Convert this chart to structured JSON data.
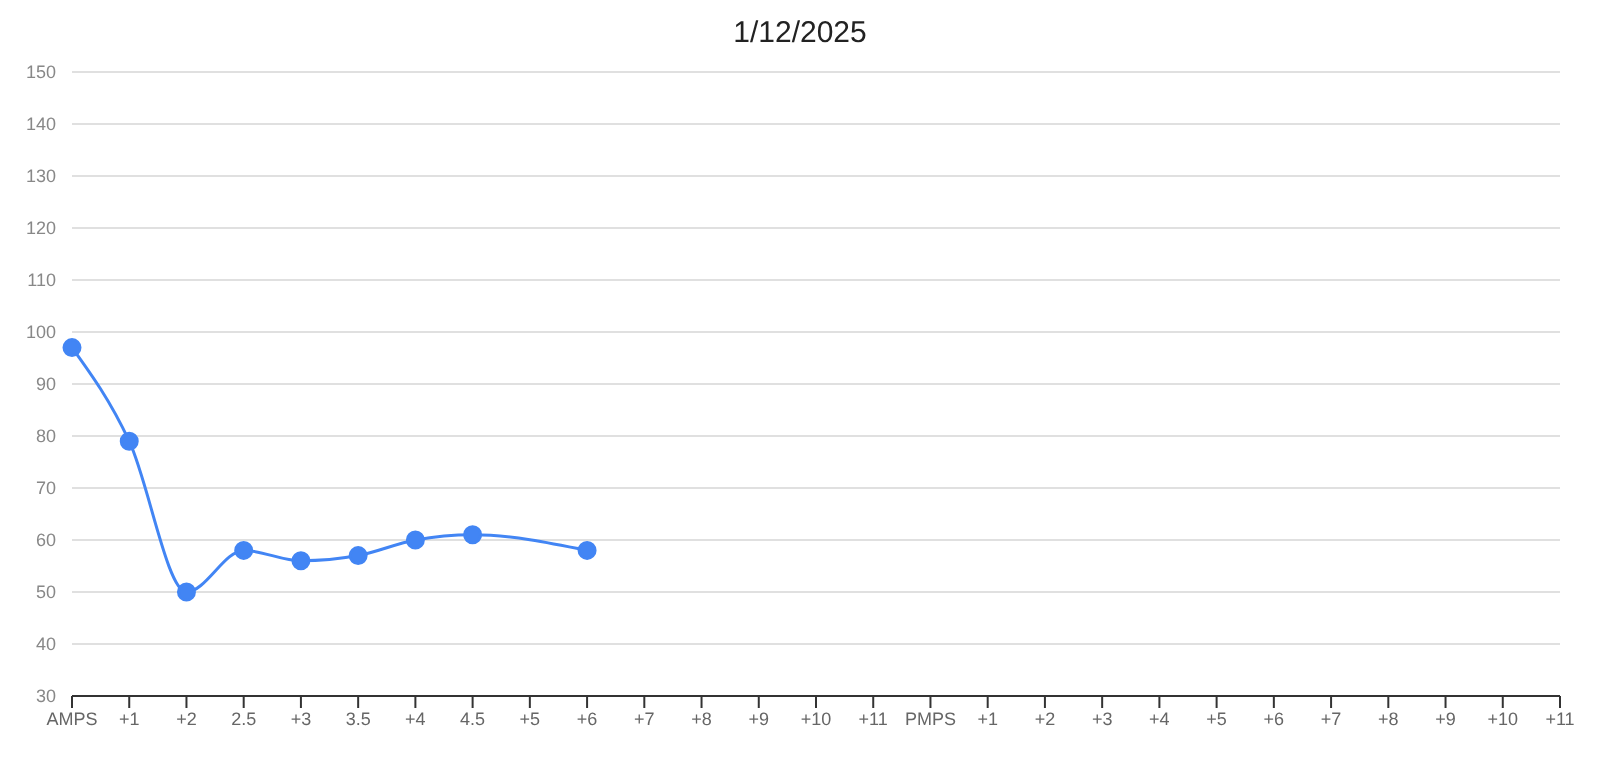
{
  "chart_data": {
    "type": "line",
    "title": "1/12/2025",
    "categories": [
      "AMPS",
      "+1",
      "+2",
      "2.5",
      "+3",
      "3.5",
      "+4",
      "4.5",
      "+5",
      "+6",
      "+7",
      "+8",
      "+9",
      "+10",
      "+11",
      "PMPS",
      "+1",
      "+2",
      "+3",
      "+4",
      "+5",
      "+6",
      "+7",
      "+8",
      "+9",
      "+10",
      "+11"
    ],
    "series": [
      {
        "color": "#4285f4",
        "values": [
          97,
          79,
          50,
          58,
          56,
          57,
          60,
          61,
          null,
          58,
          null,
          null,
          null,
          null,
          null,
          null,
          null,
          null,
          null,
          null,
          null,
          null,
          null,
          null,
          null,
          null,
          null
        ]
      }
    ],
    "ylim": [
      30,
      150
    ],
    "yticks": [
      30,
      40,
      50,
      60,
      70,
      80,
      90,
      100,
      110,
      120,
      130,
      140,
      150
    ],
    "grid": "y",
    "marker": "circle",
    "line_style": "solid"
  }
}
